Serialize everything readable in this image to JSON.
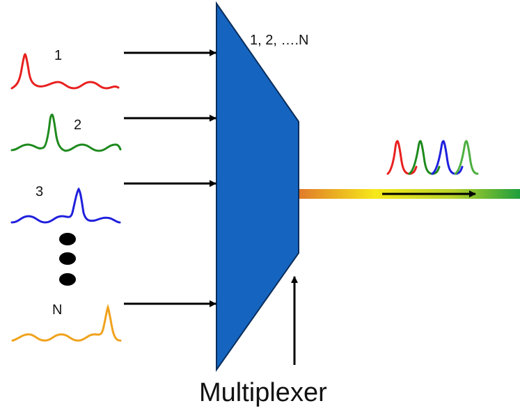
{
  "diagram": {
    "title_label": "Multiplexer",
    "top_label": "1, 2, ….N",
    "inputs": [
      {
        "label": "1",
        "color": "#e8201f"
      },
      {
        "label": "2",
        "color": "#1e8a1e"
      },
      {
        "label": "3",
        "color": "#1f1fdd"
      },
      {
        "label": "N",
        "color": "#f0a21c"
      }
    ],
    "output_pulse_colors": [
      "#e8201f",
      "#1e8a1e",
      "#1f1fdd",
      "#4caf40"
    ],
    "mux_color": "#1565c0",
    "fiber_gradient": [
      "#e0782a",
      "#f6e81a",
      "#1e9e3c"
    ],
    "icons": [
      "continuation-dots-icon",
      "arrow-right-icon",
      "arrow-up-icon"
    ]
  }
}
